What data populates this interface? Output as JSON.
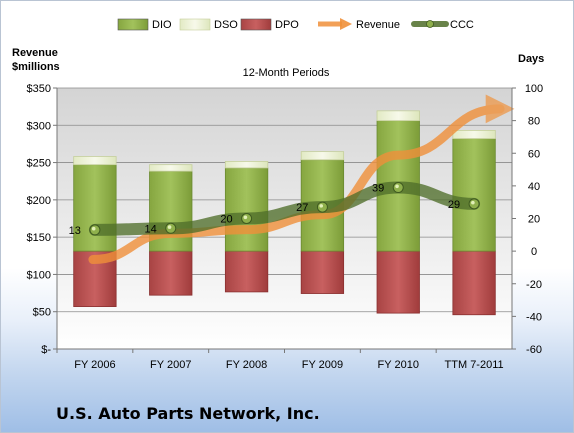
{
  "company": "U.S. Auto Parts Network, Inc.",
  "colors": {
    "dio": "#8fb04c",
    "dso": "#eef3d6",
    "dpo": "#b85050",
    "revenue": "#f0903a",
    "ccc": "#4f6e2a",
    "plot_top": "#d8d8d8",
    "plot_bottom": "#ffffff"
  },
  "chart_data": {
    "type": "bar",
    "title": "12-Month Periods",
    "ylabel_left_line1": "Revenue",
    "ylabel_left_line2": "$millions",
    "ylabel_right": "Days",
    "categories": [
      "FY 2006",
      "FY 2007",
      "FY 2008",
      "FY 2009",
      "FY 2010",
      "TTM 7-2011"
    ],
    "left_axis": {
      "min": 0,
      "max": 350,
      "step": 50,
      "tick_labels": [
        "$-",
        "$50",
        "$100",
        "$150",
        "$200",
        "$250",
        "$300",
        "$350"
      ]
    },
    "right_axis": {
      "min": -60,
      "max": 100,
      "step": 20,
      "tick_labels": [
        "-60",
        "-40",
        "-20",
        "0",
        "20",
        "40",
        "60",
        "80",
        "100"
      ]
    },
    "legend": {
      "position": "top",
      "entries": [
        {
          "name": "DIO",
          "key": "dio",
          "kind": "box"
        },
        {
          "name": "DSO",
          "key": "dso",
          "kind": "box"
        },
        {
          "name": "DPO",
          "key": "dpo",
          "kind": "box"
        },
        {
          "name": "Revenue",
          "key": "revenue",
          "kind": "arrow"
        },
        {
          "name": "CCC",
          "key": "ccc",
          "kind": "line"
        }
      ]
    },
    "series": [
      {
        "name": "DIO",
        "axis": "right",
        "values": [
          53,
          49,
          51,
          56,
          80,
          69
        ]
      },
      {
        "name": "DSO",
        "axis": "right",
        "values": [
          5,
          4,
          4,
          5,
          6,
          5
        ]
      },
      {
        "name": "DPO",
        "axis": "right",
        "values": [
          -34,
          -27,
          -25,
          -26,
          -38,
          -39
        ]
      },
      {
        "name": "Revenue",
        "axis": "left",
        "values": [
          120,
          155,
          160,
          180,
          260,
          322
        ]
      },
      {
        "name": "CCC",
        "axis": "right",
        "values": [
          13,
          14,
          20,
          27,
          39,
          29
        ]
      }
    ],
    "ccc_labels": [
      "13",
      "14",
      "20",
      "27",
      "39",
      "29"
    ]
  }
}
